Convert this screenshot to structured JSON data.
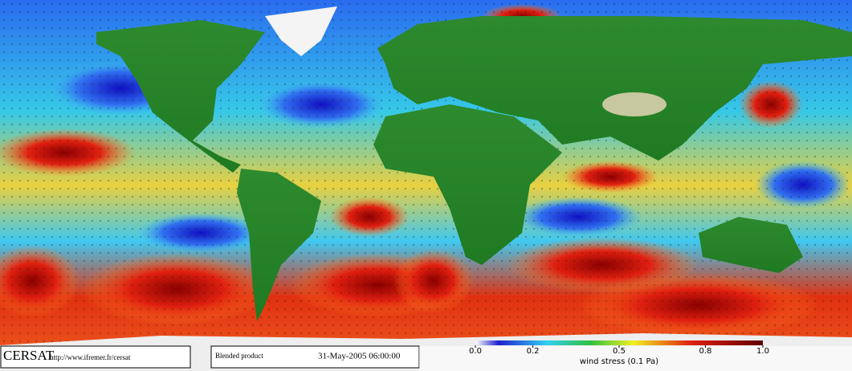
{
  "footer": {
    "logo": "CERSAT",
    "url": "http://www.ifremer.fr/cersat",
    "product": "Blended product",
    "date": "31-May-2005 06:00:00"
  },
  "colorbar": {
    "label": "wind stress (0.1 Pa)",
    "lim": [
      0,
      1
    ],
    "ticks": [
      {
        "value": 0,
        "label": "0.0"
      },
      0.2,
      0.5,
      0.8,
      {
        "value": 1,
        "label": "1.0"
      }
    ]
  }
}
